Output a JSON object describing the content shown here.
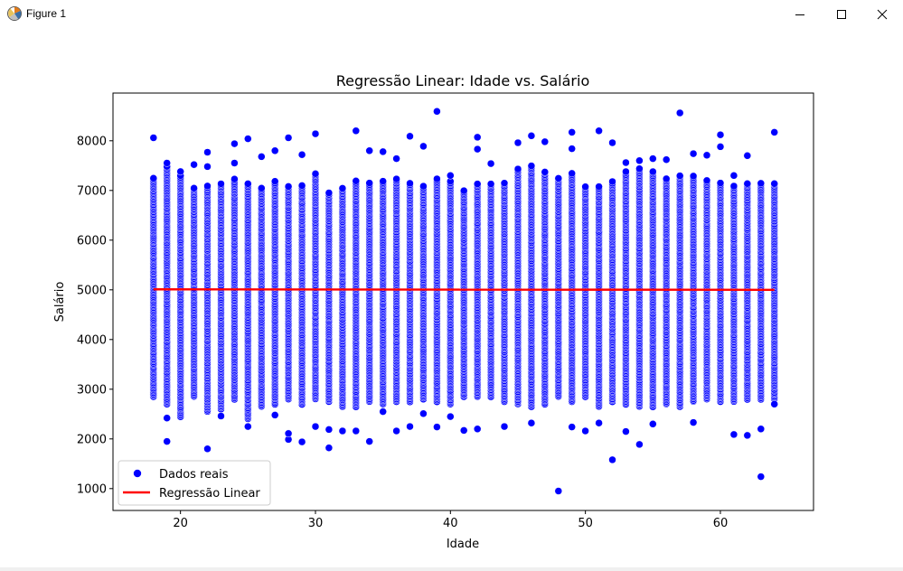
{
  "window": {
    "title": "Figure 1",
    "buttons": {
      "minimize": "minimize-icon",
      "maximize": "maximize-icon",
      "close": "close-icon"
    }
  },
  "colors": {
    "scatter": "#0000ff",
    "regression": "#ff0000",
    "axes": "#000000"
  },
  "chart_data": {
    "type": "scatter",
    "title": "Regressão Linear: Idade vs. Salário",
    "xlabel": "Idade",
    "ylabel": "Salário",
    "xlim": [
      15,
      66.9
    ],
    "ylim": [
      560,
      8960
    ],
    "xticks": [
      20,
      30,
      40,
      50,
      60
    ],
    "yticks": [
      1000,
      2000,
      3000,
      4000,
      5000,
      6000,
      7000,
      8000
    ],
    "grid": false,
    "legend": {
      "placement": "lower-left",
      "entries": [
        "Dados reais",
        "Regressão Linear"
      ]
    },
    "series": [
      {
        "name": "Dados reais",
        "kind": "scatter",
        "ages": [
          18,
          19,
          20,
          21,
          22,
          23,
          24,
          25,
          26,
          27,
          28,
          29,
          30,
          31,
          32,
          33,
          34,
          35,
          36,
          37,
          38,
          39,
          40,
          41,
          42,
          43,
          44,
          45,
          46,
          47,
          48,
          49,
          50,
          51,
          52,
          53,
          54,
          55,
          56,
          57,
          58,
          59,
          60,
          61,
          62,
          63,
          64
        ],
        "dense_range": [
          [
            2850,
            7250
          ],
          [
            2700,
            7500
          ],
          [
            2450,
            7300
          ],
          [
            2850,
            7050
          ],
          [
            2550,
            7100
          ],
          [
            2600,
            7150
          ],
          [
            2800,
            7250
          ],
          [
            2400,
            7150
          ],
          [
            2650,
            7050
          ],
          [
            2700,
            7200
          ],
          [
            2800,
            7100
          ],
          [
            2700,
            7100
          ],
          [
            2800,
            7350
          ],
          [
            2750,
            6950
          ],
          [
            2650,
            7050
          ],
          [
            2650,
            7200
          ],
          [
            2750,
            7150
          ],
          [
            2700,
            7200
          ],
          [
            2750,
            7250
          ],
          [
            2750,
            7150
          ],
          [
            2800,
            7100
          ],
          [
            2750,
            7250
          ],
          [
            2700,
            7200
          ],
          [
            2850,
            7000
          ],
          [
            2850,
            7150
          ],
          [
            2850,
            7150
          ],
          [
            2750,
            7150
          ],
          [
            2700,
            7450
          ],
          [
            2650,
            7500
          ],
          [
            2700,
            7400
          ],
          [
            2850,
            7250
          ],
          [
            2750,
            7350
          ],
          [
            2850,
            7100
          ],
          [
            2650,
            7100
          ],
          [
            2750,
            7200
          ],
          [
            2700,
            7400
          ],
          [
            2650,
            7450
          ],
          [
            2650,
            7400
          ],
          [
            2700,
            7250
          ],
          [
            2650,
            7300
          ],
          [
            2750,
            7300
          ],
          [
            2800,
            7200
          ],
          [
            2750,
            7150
          ],
          [
            2750,
            7100
          ],
          [
            2800,
            7150
          ],
          [
            2800,
            7150
          ],
          [
            2800,
            7150
          ]
        ],
        "outliers": [
          [
            18,
            8060
          ],
          [
            19,
            1950
          ],
          [
            19,
            2420
          ],
          [
            19,
            7550
          ],
          [
            20,
            7380
          ],
          [
            21,
            7520
          ],
          [
            22,
            1800
          ],
          [
            22,
            7480
          ],
          [
            22,
            7770
          ],
          [
            23,
            2460
          ],
          [
            24,
            7940
          ],
          [
            24,
            7550
          ],
          [
            25,
            2250
          ],
          [
            25,
            8040
          ],
          [
            26,
            7680
          ],
          [
            27,
            7800
          ],
          [
            27,
            2480
          ],
          [
            28,
            1990
          ],
          [
            28,
            2110
          ],
          [
            28,
            8060
          ],
          [
            29,
            1940
          ],
          [
            29,
            7720
          ],
          [
            30,
            8140
          ],
          [
            30,
            2250
          ],
          [
            31,
            1820
          ],
          [
            31,
            2190
          ],
          [
            32,
            2160
          ],
          [
            33,
            8200
          ],
          [
            33,
            2160
          ],
          [
            34,
            7800
          ],
          [
            34,
            1950
          ],
          [
            35,
            7780
          ],
          [
            35,
            2550
          ],
          [
            36,
            7640
          ],
          [
            36,
            2160
          ],
          [
            37,
            8090
          ],
          [
            37,
            2250
          ],
          [
            38,
            7890
          ],
          [
            38,
            2510
          ],
          [
            39,
            8590
          ],
          [
            39,
            2240
          ],
          [
            40,
            7300
          ],
          [
            40,
            2450
          ],
          [
            41,
            2170
          ],
          [
            42,
            8070
          ],
          [
            42,
            7830
          ],
          [
            42,
            2200
          ],
          [
            43,
            7540
          ],
          [
            44,
            2250
          ],
          [
            45,
            7960
          ],
          [
            46,
            8100
          ],
          [
            46,
            2320
          ],
          [
            47,
            7980
          ],
          [
            48,
            950
          ],
          [
            49,
            8170
          ],
          [
            49,
            7840
          ],
          [
            49,
            2240
          ],
          [
            50,
            2160
          ],
          [
            51,
            8200
          ],
          [
            51,
            2320
          ],
          [
            52,
            1580
          ],
          [
            52,
            7960
          ],
          [
            53,
            2150
          ],
          [
            53,
            7560
          ],
          [
            54,
            1890
          ],
          [
            54,
            7600
          ],
          [
            55,
            2300
          ],
          [
            55,
            7640
          ],
          [
            56,
            7620
          ],
          [
            57,
            8560
          ],
          [
            58,
            2330
          ],
          [
            58,
            7740
          ],
          [
            59,
            7710
          ],
          [
            60,
            8120
          ],
          [
            60,
            7880
          ],
          [
            61,
            2090
          ],
          [
            61,
            7300
          ],
          [
            62,
            2070
          ],
          [
            62,
            7700
          ],
          [
            63,
            1240
          ],
          [
            63,
            2200
          ],
          [
            64,
            8170
          ],
          [
            64,
            2700
          ]
        ]
      },
      {
        "name": "Regressão Linear",
        "kind": "line",
        "x": [
          18,
          64
        ],
        "y": [
          5010,
          5000
        ]
      }
    ]
  }
}
